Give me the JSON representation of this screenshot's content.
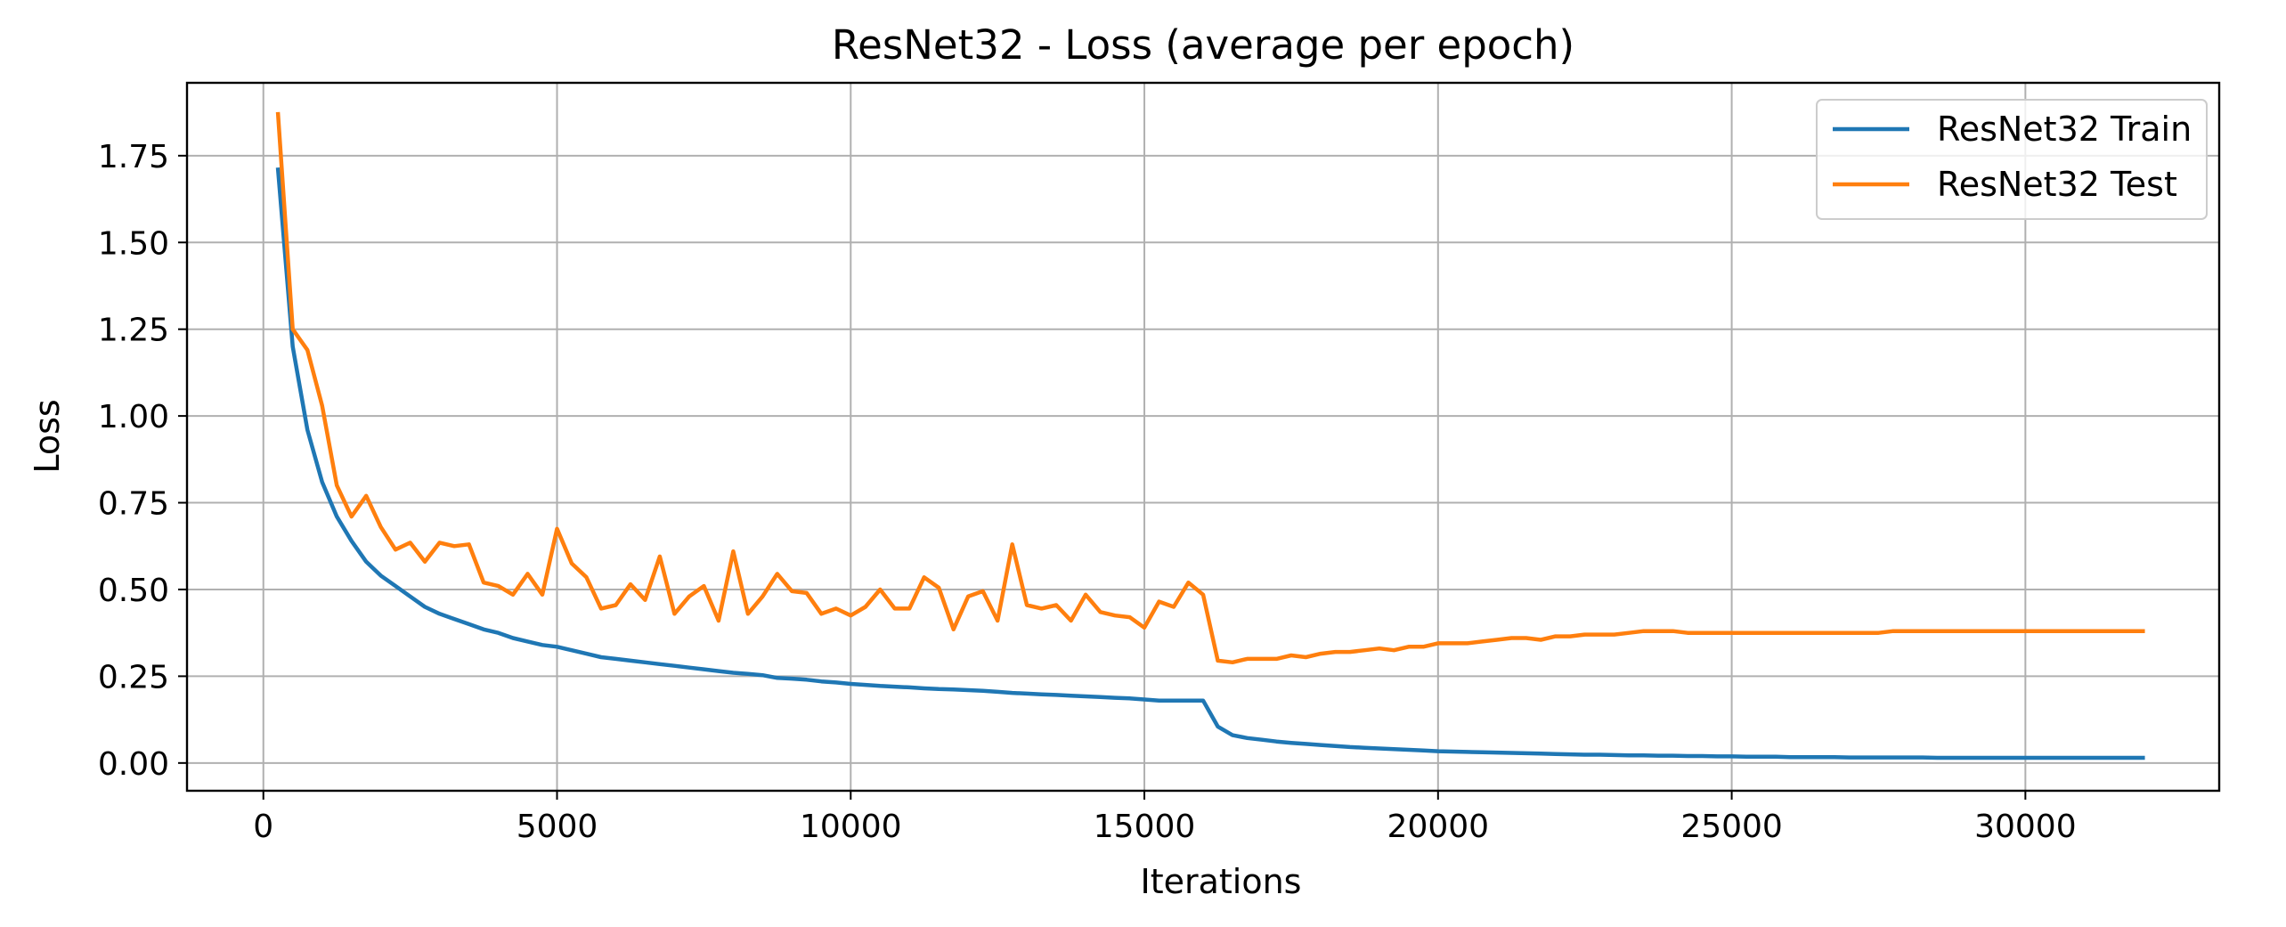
{
  "chart_data": {
    "type": "line",
    "title": "ResNet32 - Loss (average per epoch)",
    "xlabel": "Iterations",
    "ylabel": "Loss",
    "xlim": [
      -1300,
      33300
    ],
    "ylim": [
      -0.08,
      1.96
    ],
    "xticks": [
      0,
      5000,
      10000,
      15000,
      20000,
      25000,
      30000
    ],
    "xtick_labels": [
      "0",
      "5000",
      "10000",
      "15000",
      "20000",
      "25000",
      "30000"
    ],
    "yticks": [
      0.0,
      0.25,
      0.5,
      0.75,
      1.0,
      1.25,
      1.5,
      1.75
    ],
    "ytick_labels": [
      "0.00",
      "0.25",
      "0.50",
      "0.75",
      "1.00",
      "1.25",
      "1.50",
      "1.75"
    ],
    "grid": true,
    "legend_position": "top-right",
    "x": [
      250,
      500,
      750,
      1000,
      1250,
      1500,
      1750,
      2000,
      2250,
      2500,
      2750,
      3000,
      3250,
      3500,
      3750,
      4000,
      4250,
      4500,
      4750,
      5000,
      5250,
      5500,
      5750,
      6000,
      6250,
      6500,
      6750,
      7000,
      7250,
      7500,
      7750,
      8000,
      8250,
      8500,
      8750,
      9000,
      9250,
      9500,
      9750,
      10000,
      10250,
      10500,
      10750,
      11000,
      11250,
      11500,
      11750,
      12000,
      12250,
      12500,
      12750,
      13000,
      13250,
      13500,
      13750,
      14000,
      14250,
      14500,
      14750,
      15000,
      15250,
      15500,
      15750,
      16000,
      16250,
      16500,
      16750,
      17000,
      17250,
      17500,
      17750,
      18000,
      18250,
      18500,
      18750,
      19000,
      19250,
      19500,
      19750,
      20000,
      20250,
      20500,
      20750,
      21000,
      21250,
      21500,
      21750,
      22000,
      22250,
      22500,
      22750,
      23000,
      23250,
      23500,
      23750,
      24000,
      24250,
      24500,
      24750,
      25000,
      25250,
      25500,
      25750,
      26000,
      26250,
      26500,
      26750,
      27000,
      27250,
      27500,
      27750,
      28000,
      28250,
      28500,
      28750,
      29000,
      29250,
      29500,
      29750,
      30000,
      30250,
      30500,
      30750,
      31000,
      31250,
      31500,
      31750,
      32000
    ],
    "series": [
      {
        "name": "ResNet32 Train",
        "color": "#1f77b4",
        "values": [
          1.71,
          1.2,
          0.96,
          0.81,
          0.71,
          0.64,
          0.58,
          0.54,
          0.51,
          0.48,
          0.45,
          0.43,
          0.415,
          0.4,
          0.385,
          0.375,
          0.36,
          0.35,
          0.34,
          0.335,
          0.325,
          0.315,
          0.305,
          0.3,
          0.295,
          0.29,
          0.285,
          0.28,
          0.275,
          0.27,
          0.265,
          0.26,
          0.257,
          0.253,
          0.245,
          0.243,
          0.24,
          0.235,
          0.232,
          0.228,
          0.225,
          0.222,
          0.22,
          0.218,
          0.215,
          0.213,
          0.212,
          0.21,
          0.208,
          0.205,
          0.202,
          0.2,
          0.198,
          0.196,
          0.194,
          0.192,
          0.19,
          0.188,
          0.186,
          0.183,
          0.18,
          0.18,
          0.18,
          0.18,
          0.105,
          0.08,
          0.072,
          0.067,
          0.062,
          0.058,
          0.055,
          0.052,
          0.049,
          0.046,
          0.044,
          0.042,
          0.04,
          0.038,
          0.036,
          0.034,
          0.033,
          0.032,
          0.031,
          0.03,
          0.029,
          0.028,
          0.027,
          0.026,
          0.025,
          0.024,
          0.024,
          0.023,
          0.022,
          0.022,
          0.021,
          0.021,
          0.02,
          0.02,
          0.019,
          0.019,
          0.018,
          0.018,
          0.018,
          0.017,
          0.017,
          0.017,
          0.017,
          0.016,
          0.016,
          0.016,
          0.016,
          0.016,
          0.016,
          0.015,
          0.015,
          0.015,
          0.015,
          0.015,
          0.015,
          0.015,
          0.015,
          0.015,
          0.015,
          0.015,
          0.015,
          0.015,
          0.015,
          0.015
        ]
      },
      {
        "name": "ResNet32 Test",
        "color": "#ff7f0e",
        "values": [
          1.87,
          1.25,
          1.19,
          1.03,
          0.8,
          0.71,
          0.77,
          0.68,
          0.615,
          0.635,
          0.58,
          0.635,
          0.625,
          0.63,
          0.52,
          0.51,
          0.485,
          0.545,
          0.485,
          0.675,
          0.575,
          0.535,
          0.445,
          0.455,
          0.515,
          0.47,
          0.595,
          0.43,
          0.48,
          0.51,
          0.41,
          0.61,
          0.43,
          0.48,
          0.545,
          0.495,
          0.49,
          0.43,
          0.445,
          0.425,
          0.45,
          0.5,
          0.445,
          0.445,
          0.535,
          0.505,
          0.385,
          0.48,
          0.495,
          0.41,
          0.63,
          0.455,
          0.445,
          0.455,
          0.41,
          0.485,
          0.435,
          0.425,
          0.42,
          0.39,
          0.465,
          0.45,
          0.52,
          0.485,
          0.295,
          0.29,
          0.3,
          0.3,
          0.3,
          0.31,
          0.305,
          0.315,
          0.32,
          0.32,
          0.325,
          0.33,
          0.325,
          0.335,
          0.335,
          0.345,
          0.345,
          0.345,
          0.35,
          0.355,
          0.36,
          0.36,
          0.355,
          0.365,
          0.365,
          0.37,
          0.37,
          0.37,
          0.375,
          0.38,
          0.38,
          0.38,
          0.375,
          0.375,
          0.375,
          0.375,
          0.375,
          0.375,
          0.375,
          0.375,
          0.375,
          0.375,
          0.375,
          0.375,
          0.375,
          0.375,
          0.38,
          0.38,
          0.38,
          0.38,
          0.38,
          0.38,
          0.38,
          0.38,
          0.38,
          0.38,
          0.38,
          0.38,
          0.38,
          0.38,
          0.38,
          0.38,
          0.38,
          0.38
        ]
      }
    ]
  }
}
